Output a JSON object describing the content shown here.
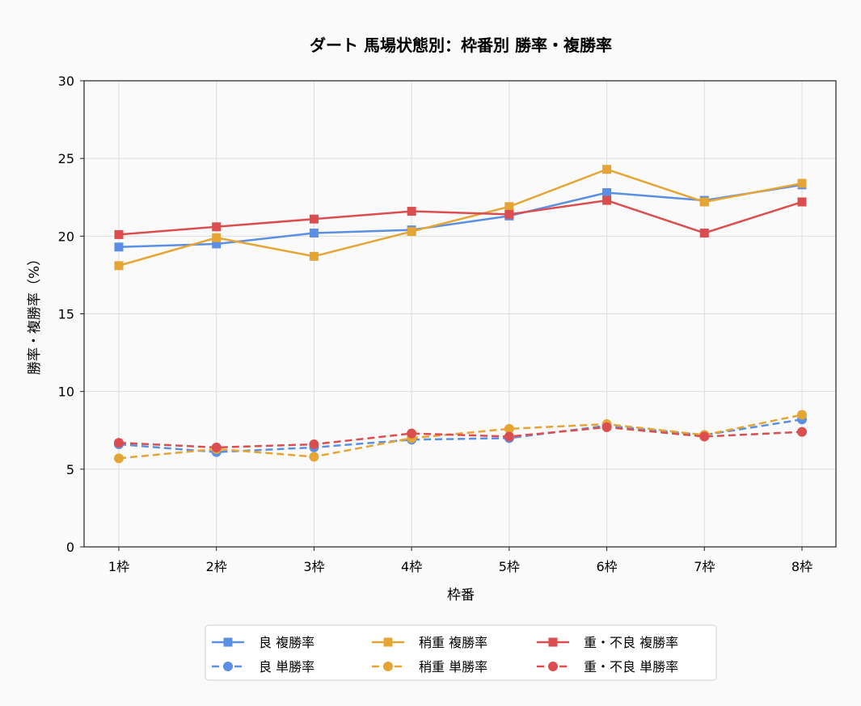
{
  "chart_data": {
    "type": "line",
    "title": "ダート 馬場状態別：枠番別 勝率・複勝率",
    "xlabel": "枠番",
    "ylabel": "勝率・複勝率（%）",
    "categories": [
      "1枠",
      "2枠",
      "3枠",
      "4枠",
      "5枠",
      "6枠",
      "7枠",
      "8枠"
    ],
    "ylim": [
      0,
      30
    ],
    "yticks": [
      0,
      5,
      10,
      15,
      20,
      25,
      30
    ],
    "grid": true,
    "legend_position": "bottom-center",
    "series": [
      {
        "name": "良 複勝率",
        "values": [
          19.3,
          19.5,
          20.2,
          20.4,
          21.3,
          22.8,
          22.3,
          23.3
        ],
        "color": "#5b8fe3",
        "dash": "solid",
        "marker": "square"
      },
      {
        "name": "稍重 複勝率",
        "values": [
          18.1,
          19.9,
          18.7,
          20.3,
          21.9,
          24.3,
          22.2,
          23.4
        ],
        "color": "#e5a535",
        "dash": "solid",
        "marker": "square"
      },
      {
        "name": "重・不良 複勝率",
        "values": [
          20.1,
          20.6,
          21.1,
          21.6,
          21.4,
          22.3,
          20.2,
          22.2
        ],
        "color": "#db4e50",
        "dash": "solid",
        "marker": "square"
      },
      {
        "name": "良 単勝率",
        "values": [
          6.6,
          6.1,
          6.4,
          6.9,
          7.0,
          7.8,
          7.2,
          8.2
        ],
        "color": "#5b8fe3",
        "dash": "dashed",
        "marker": "circle"
      },
      {
        "name": "稍重 単勝率",
        "values": [
          5.7,
          6.3,
          5.8,
          7.0,
          7.6,
          7.9,
          7.2,
          8.5
        ],
        "color": "#e5a535",
        "dash": "dashed",
        "marker": "circle"
      },
      {
        "name": "重・不良 単勝率",
        "values": [
          6.7,
          6.4,
          6.6,
          7.3,
          7.1,
          7.7,
          7.1,
          7.4
        ],
        "color": "#db4e50",
        "dash": "dashed",
        "marker": "circle"
      }
    ],
    "legend_order": [
      0,
      3,
      1,
      4,
      2,
      5
    ]
  }
}
